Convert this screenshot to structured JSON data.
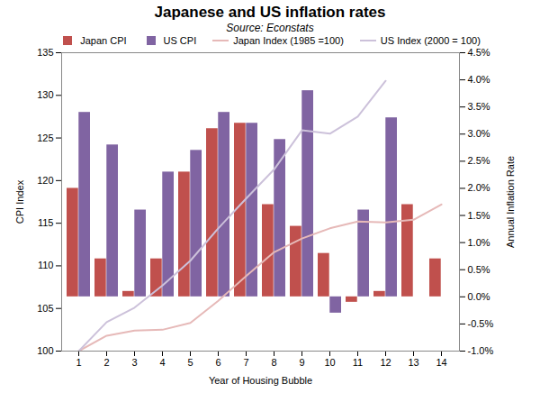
{
  "chart_data": {
    "type": "bar",
    "title": "Japanese and US inflation rates",
    "subtitle": "Source: Econstats",
    "x_label": "Year of Housing Bubble",
    "y_label": "CPI Index",
    "y2_label": "Annual Inflation Rate",
    "categories": [
      1,
      2,
      3,
      4,
      5,
      6,
      7,
      8,
      9,
      10,
      11,
      12,
      13,
      14
    ],
    "ylim": [
      100,
      135
    ],
    "yticks": [
      100,
      105,
      110,
      115,
      120,
      125,
      130,
      135
    ],
    "y2lim": [
      -1.0,
      4.5
    ],
    "y2ticks": [
      {
        "value": -1.0,
        "label": "-1.0%"
      },
      {
        "value": -0.5,
        "label": "-0.5%"
      },
      {
        "value": 0.0,
        "label": "0.0%"
      },
      {
        "value": 0.5,
        "label": "0.5%"
      },
      {
        "value": 1.0,
        "label": "1.0%"
      },
      {
        "value": 1.5,
        "label": "1.5%"
      },
      {
        "value": 2.0,
        "label": "2.0%"
      },
      {
        "value": 2.5,
        "label": "2.5%"
      },
      {
        "value": 3.0,
        "label": "3.0%"
      },
      {
        "value": 3.5,
        "label": "3.5%"
      },
      {
        "value": 4.0,
        "label": "4.0%"
      },
      {
        "value": 4.5,
        "label": "4.5%"
      }
    ],
    "legend": "top",
    "series": [
      {
        "name": "Japan CPI",
        "type": "bar",
        "axis": "y2",
        "color": "#c0504d",
        "values": [
          2.0,
          0.7,
          0.1,
          0.7,
          2.3,
          3.1,
          3.2,
          1.7,
          1.3,
          0.8,
          -0.1,
          0.1,
          1.7,
          0.7
        ]
      },
      {
        "name": "US CPI",
        "type": "bar",
        "axis": "y2",
        "color": "#8064a2",
        "values": [
          3.4,
          2.8,
          1.6,
          2.3,
          2.7,
          3.4,
          3.2,
          2.9,
          3.8,
          -0.3,
          1.6,
          3.3,
          null,
          null
        ]
      },
      {
        "name": "Japan Index (1985 =100)",
        "type": "line",
        "color": "#e6b9b8",
        "values": [
          100,
          101.8,
          102.4,
          102.5,
          103.3,
          105.9,
          108.8,
          111.6,
          113.2,
          114.4,
          115.2,
          115.1,
          115.4,
          117.2
        ]
      },
      {
        "name": "US Index (2000 = 100)",
        "type": "line",
        "color": "#ccc1da",
        "values": [
          100,
          103.4,
          105.1,
          107.7,
          110.6,
          114.4,
          117.9,
          121.3,
          125.9,
          125.5,
          127.5,
          131.7,
          null,
          null
        ]
      }
    ]
  }
}
